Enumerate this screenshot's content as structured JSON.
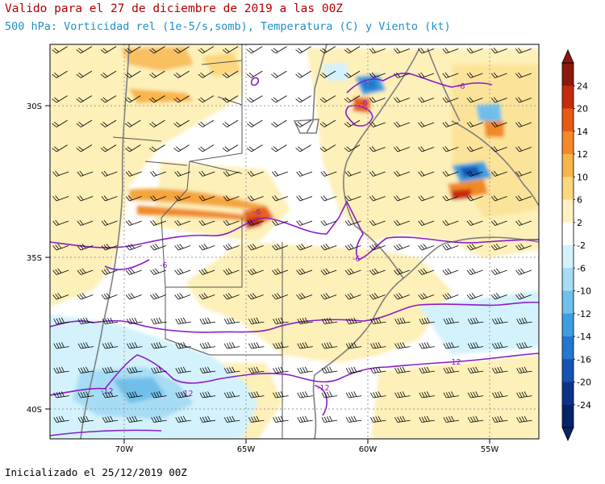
{
  "header": {
    "title": "Valido para el 27 de diciembre de 2019 a las 00Z",
    "subtitle": "500 hPa: Vorticidad rel (1e-5/s,somb), Temperatura (C) y Viento (kt)"
  },
  "footer": {
    "init_text": "Inicializado el 25/12/2019 00Z"
  },
  "map": {
    "lon_ticks": [
      "70W",
      "65W",
      "60W",
      "55W"
    ],
    "lat_ticks": [
      "30S",
      "35S",
      "40S"
    ],
    "contour_labels": [
      "-6",
      "-6",
      "-6",
      "-6",
      "-6",
      "-12",
      "-12",
      "-12",
      "-12"
    ]
  },
  "colorbar": {
    "labels": [
      "24",
      "20",
      "14",
      "12",
      "10",
      "6",
      "2",
      "-2",
      "-6",
      "-10",
      "-12",
      "-14",
      "-16",
      "-20",
      "-24"
    ],
    "colors": [
      "#8b1a0c",
      "#c82a0c",
      "#e85a14",
      "#f5882a",
      "#f8b54c",
      "#fbd77f",
      "#fdf2bf",
      "#ffffff",
      "#d3f2fb",
      "#a6dcf4",
      "#6fbfea",
      "#3d9ede",
      "#2477cd",
      "#1453b2",
      "#0c3388",
      "#07246a"
    ]
  }
}
